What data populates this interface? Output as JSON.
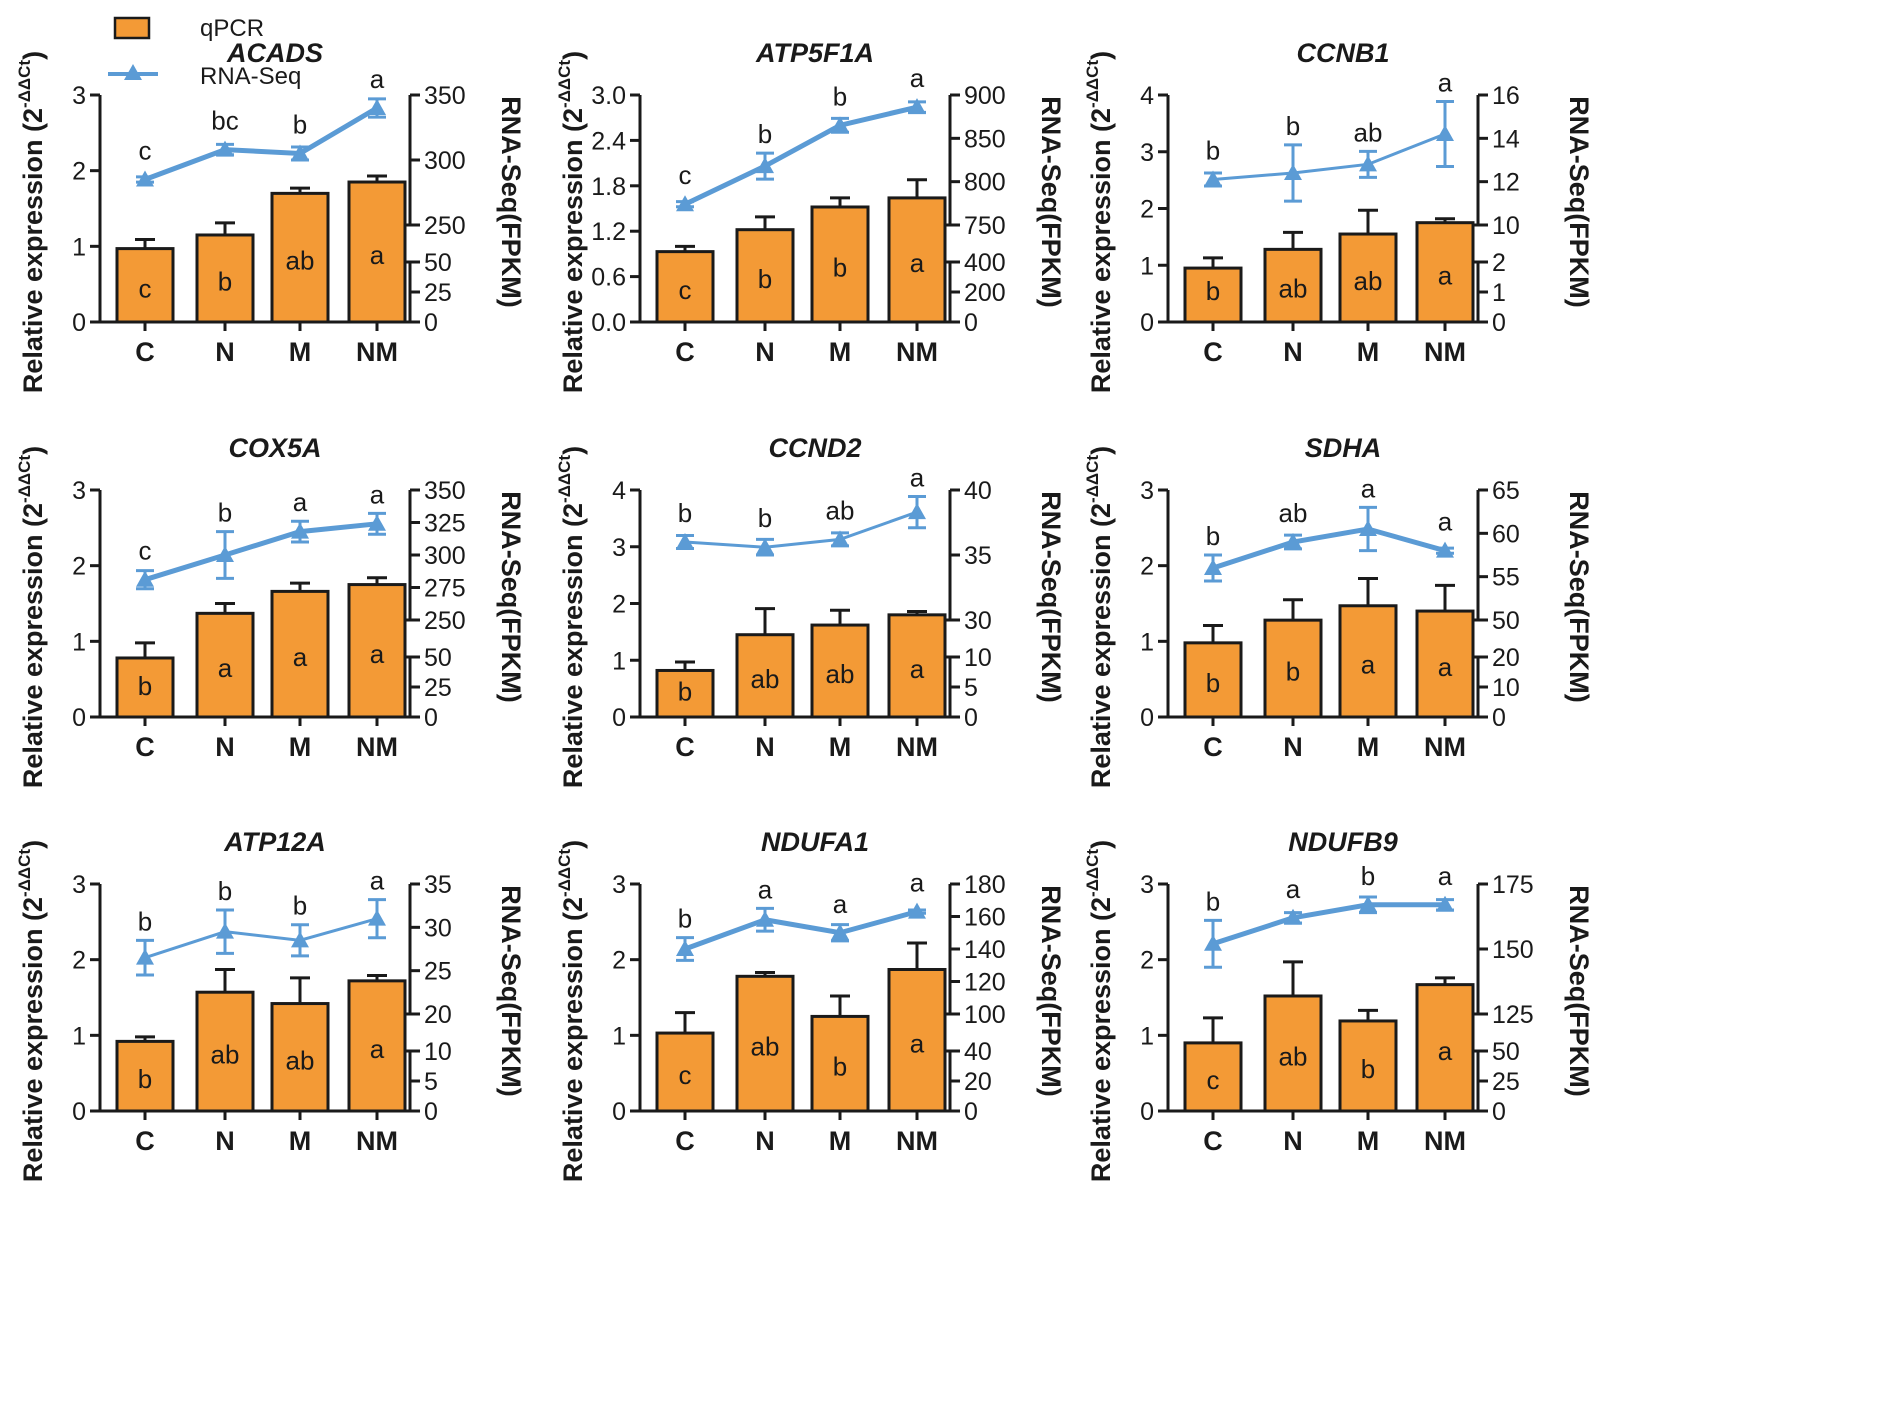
{
  "legend": {
    "bar_label": "qPCR",
    "line_label": "RNA-Seq"
  },
  "colors": {
    "bar": "#F39A36",
    "bar_stroke": "#1a1a1a",
    "line": "#5B9BD5",
    "axis": "#1a1a1a"
  },
  "common": {
    "categories": [
      "C",
      "N",
      "M",
      "NM"
    ],
    "left_ylabel_main": "Relative expression (2",
    "left_ylabel_sup": "-ΔΔCt",
    "left_ylabel_close": ")",
    "right_ylabel": "RNA-Seq(FPKM)"
  },
  "chart_data": [
    {
      "type": "bar",
      "title": "ACADS",
      "categories": [
        "C",
        "N",
        "M",
        "NM"
      ],
      "ylim": [
        0,
        3
      ],
      "left_ticks": [
        "0",
        "1",
        "2",
        "3"
      ],
      "series": [
        {
          "name": "qPCR",
          "values": [
            0.97,
            1.15,
            1.7,
            1.85
          ],
          "errors": [
            0.12,
            0.16,
            0.07,
            0.08
          ],
          "labels": [
            "c",
            "b",
            "ab",
            "a"
          ]
        },
        {
          "name": "RNA-Seq",
          "values": [
            285,
            308,
            305,
            340
          ],
          "errors": [
            2,
            4,
            5,
            7
          ],
          "labels": [
            "c",
            "bc",
            "b",
            "a"
          ]
        }
      ],
      "right_axis": {
        "upper_range": [
          250,
          350
        ],
        "upper_ticks": [
          "250",
          "300",
          "350"
        ],
        "lower_range": [
          0,
          50
        ],
        "lower_ticks": [
          "0",
          "25",
          "50"
        ]
      },
      "line_style": "thick"
    },
    {
      "type": "bar",
      "title": "ATP5F1A",
      "categories": [
        "C",
        "N",
        "M",
        "NM"
      ],
      "ylim": [
        0,
        3
      ],
      "left_ticks": [
        "0.0",
        "0.6",
        "1.2",
        "1.8",
        "2.4",
        "3.0"
      ],
      "series": [
        {
          "name": "qPCR",
          "values": [
            0.93,
            1.22,
            1.52,
            1.64
          ],
          "errors": [
            0.07,
            0.17,
            0.12,
            0.24
          ],
          "labels": [
            "c",
            "b",
            "b",
            "a"
          ]
        },
        {
          "name": "RNA-Seq",
          "values": [
            774,
            818,
            865,
            886
          ],
          "errors": [
            3,
            15,
            8,
            6
          ],
          "labels": [
            "c",
            "b",
            "b",
            "a"
          ]
        }
      ],
      "right_axis": {
        "upper_range": [
          750,
          900
        ],
        "upper_ticks": [
          "750",
          "800",
          "850",
          "900"
        ],
        "lower_range": [
          0,
          400
        ],
        "lower_ticks": [
          "0",
          "200",
          "400"
        ]
      },
      "line_style": "thick"
    },
    {
      "type": "bar",
      "title": "CCNB1",
      "categories": [
        "C",
        "N",
        "M",
        "NM"
      ],
      "ylim": [
        0,
        4
      ],
      "left_ticks": [
        "0",
        "1",
        "2",
        "3",
        "4"
      ],
      "series": [
        {
          "name": "qPCR",
          "values": [
            0.95,
            1.28,
            1.55,
            1.75
          ],
          "errors": [
            0.18,
            0.3,
            0.42,
            0.07
          ],
          "labels": [
            "b",
            "ab",
            "ab",
            "a"
          ]
        },
        {
          "name": "RNA-Seq",
          "values": [
            12.1,
            12.4,
            12.8,
            14.2
          ],
          "errors": [
            0.3,
            1.3,
            0.6,
            1.5
          ],
          "labels": [
            "b",
            "b",
            "ab",
            "a"
          ]
        }
      ],
      "right_axis": {
        "upper_range": [
          10,
          16
        ],
        "upper_ticks": [
          "10",
          "12",
          "14",
          "16"
        ],
        "lower_range": [
          0,
          2
        ],
        "lower_ticks": [
          "0",
          "1",
          "2"
        ]
      },
      "line_style": "thin"
    },
    {
      "type": "bar",
      "title": "COX5A",
      "categories": [
        "C",
        "N",
        "M",
        "NM"
      ],
      "ylim": [
        0,
        3
      ],
      "left_ticks": [
        "0",
        "1",
        "2",
        "3"
      ],
      "series": [
        {
          "name": "qPCR",
          "values": [
            0.78,
            1.37,
            1.66,
            1.75
          ],
          "errors": [
            0.2,
            0.13,
            0.11,
            0.09
          ],
          "labels": [
            "b",
            "a",
            "a",
            "a"
          ]
        },
        {
          "name": "RNA-Seq",
          "values": [
            281,
            300,
            318,
            324
          ],
          "errors": [
            7,
            18,
            8,
            8
          ],
          "labels": [
            "c",
            "b",
            "a",
            "a"
          ]
        }
      ],
      "right_axis": {
        "upper_range": [
          250,
          350
        ],
        "upper_ticks": [
          "250",
          "275",
          "300",
          "325",
          "350"
        ],
        "lower_range": [
          0,
          50
        ],
        "lower_ticks": [
          "0",
          "25",
          "50"
        ]
      },
      "line_style": "thick"
    },
    {
      "type": "bar",
      "title": "CCND2",
      "categories": [
        "C",
        "N",
        "M",
        "NM"
      ],
      "ylim": [
        0,
        4
      ],
      "left_ticks": [
        "0",
        "1",
        "2",
        "3",
        "4"
      ],
      "series": [
        {
          "name": "qPCR",
          "values": [
            0.82,
            1.45,
            1.62,
            1.8
          ],
          "errors": [
            0.15,
            0.46,
            0.26,
            0.06
          ],
          "labels": [
            "b",
            "ab",
            "ab",
            "a"
          ]
        },
        {
          "name": "RNA-Seq",
          "values": [
            36.0,
            35.6,
            36.2,
            38.3
          ],
          "errors": [
            0.5,
            0.6,
            0.5,
            1.2
          ],
          "labels": [
            "b",
            "b",
            "ab",
            "a"
          ]
        }
      ],
      "right_axis": {
        "upper_range": [
          30,
          40
        ],
        "upper_ticks": [
          "30",
          "35",
          "40"
        ],
        "lower_range": [
          0,
          10
        ],
        "lower_ticks": [
          "0",
          "5",
          "10"
        ]
      },
      "line_style": "thin"
    },
    {
      "type": "bar",
      "title": "SDHA",
      "categories": [
        "C",
        "N",
        "M",
        "NM"
      ],
      "ylim": [
        0,
        3
      ],
      "left_ticks": [
        "0",
        "1",
        "2",
        "3"
      ],
      "series": [
        {
          "name": "qPCR",
          "values": [
            0.98,
            1.28,
            1.47,
            1.4
          ],
          "errors": [
            0.23,
            0.27,
            0.36,
            0.34
          ],
          "labels": [
            "b",
            "b",
            "a",
            "a"
          ]
        },
        {
          "name": "RNA-Seq",
          "values": [
            56,
            59,
            60.5,
            58
          ],
          "errors": [
            1.5,
            0.8,
            2.5,
            0.3
          ],
          "labels": [
            "b",
            "ab",
            "a",
            "a"
          ]
        }
      ],
      "right_axis": {
        "upper_range": [
          50,
          65
        ],
        "upper_ticks": [
          "50",
          "55",
          "60",
          "65"
        ],
        "lower_range": [
          0,
          20
        ],
        "lower_ticks": [
          "0",
          "10",
          "20"
        ]
      },
      "line_style": "thick"
    },
    {
      "type": "bar",
      "title": "ATP12A",
      "categories": [
        "C",
        "N",
        "M",
        "NM"
      ],
      "ylim": [
        0,
        3
      ],
      "left_ticks": [
        "0",
        "1",
        "2",
        "3"
      ],
      "series": [
        {
          "name": "qPCR",
          "values": [
            0.92,
            1.57,
            1.42,
            1.72
          ],
          "errors": [
            0.06,
            0.3,
            0.34,
            0.07
          ],
          "labels": [
            "b",
            "ab",
            "ab",
            "a"
          ]
        },
        {
          "name": "RNA-Seq",
          "values": [
            26.5,
            29.5,
            28.5,
            31
          ],
          "errors": [
            2,
            2.5,
            1.8,
            2.2
          ],
          "labels": [
            "b",
            "b",
            "b",
            "a"
          ]
        }
      ],
      "right_axis": {
        "upper_range": [
          20,
          35
        ],
        "upper_ticks": [
          "20",
          "25",
          "30",
          "35"
        ],
        "lower_range": [
          0,
          10
        ],
        "lower_ticks": [
          "0",
          "5",
          "10"
        ]
      },
      "line_style": "thin"
    },
    {
      "type": "bar",
      "title": "NDUFA1",
      "categories": [
        "C",
        "N",
        "M",
        "NM"
      ],
      "ylim": [
        0,
        3
      ],
      "left_ticks": [
        "0",
        "1",
        "2",
        "3"
      ],
      "series": [
        {
          "name": "qPCR",
          "values": [
            1.03,
            1.78,
            1.25,
            1.87
          ],
          "errors": [
            0.27,
            0.05,
            0.27,
            0.35
          ],
          "labels": [
            "c",
            "ab",
            "b",
            "a"
          ]
        },
        {
          "name": "RNA-Seq",
          "values": [
            140,
            158,
            150,
            163
          ],
          "errors": [
            7,
            7,
            5,
            1
          ],
          "labels": [
            "b",
            "a",
            "a",
            "a"
          ]
        }
      ],
      "right_axis": {
        "upper_range": [
          100,
          180
        ],
        "upper_ticks": [
          "100",
          "120",
          "140",
          "160",
          "180"
        ],
        "lower_range": [
          0,
          40
        ],
        "lower_ticks": [
          "0",
          "20",
          "40"
        ]
      },
      "line_style": "thick"
    },
    {
      "type": "bar",
      "title": "NDUFB9",
      "categories": [
        "C",
        "N",
        "M",
        "NM"
      ],
      "ylim": [
        0,
        3
      ],
      "left_ticks": [
        "0",
        "1",
        "2",
        "3"
      ],
      "series": [
        {
          "name": "qPCR",
          "values": [
            0.9,
            1.52,
            1.19,
            1.67
          ],
          "errors": [
            0.33,
            0.45,
            0.14,
            0.09
          ],
          "labels": [
            "c",
            "ab",
            "b",
            "a"
          ]
        },
        {
          "name": "RNA-Seq",
          "values": [
            152,
            162,
            167,
            167
          ],
          "errors": [
            9,
            2,
            3,
            2
          ],
          "labels": [
            "b",
            "a",
            "b",
            "a"
          ]
        }
      ],
      "right_axis": {
        "upper_range": [
          125,
          175
        ],
        "upper_ticks": [
          "125",
          "150",
          "175"
        ],
        "lower_range": [
          0,
          50
        ],
        "lower_ticks": [
          "0",
          "25",
          "50"
        ]
      },
      "line_style": "thick"
    }
  ]
}
